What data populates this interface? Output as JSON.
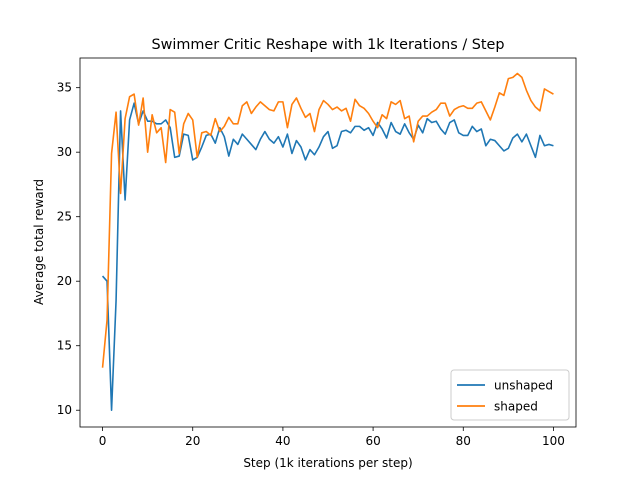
{
  "chart_data": {
    "type": "line",
    "title": "Swimmer Critic Reshape with 1k Iterations / Step",
    "xlabel": "Step (1k iterations per step)",
    "ylabel": "Average total reward",
    "xlim": [
      -5,
      105
    ],
    "ylim": [
      8.7,
      37.3
    ],
    "xticks": [
      0,
      20,
      40,
      60,
      80,
      100
    ],
    "yticks": [
      10,
      15,
      20,
      25,
      30,
      35
    ],
    "grid": false,
    "legend_position": "lower-right",
    "series": [
      {
        "name": "unshaped",
        "color": "#1f77b4",
        "values": [
          20.4,
          20.0,
          10.0,
          18.5,
          33.2,
          26.3,
          32.5,
          33.8,
          32.2,
          33.2,
          32.4,
          32.4,
          32.2,
          32.2,
          32.5,
          31.9,
          29.6,
          29.7,
          31.4,
          31.3,
          29.4,
          29.6,
          30.4,
          31.3,
          31.4,
          30.7,
          31.9,
          31.2,
          29.7,
          31.0,
          30.6,
          31.4,
          31.0,
          30.6,
          30.2,
          31.0,
          31.6,
          31.0,
          30.7,
          31.2,
          30.4,
          31.4,
          29.9,
          30.9,
          30.4,
          29.4,
          30.2,
          29.8,
          30.4,
          31.2,
          31.6,
          30.3,
          30.5,
          31.6,
          31.7,
          31.5,
          32.0,
          32.0,
          31.7,
          31.9,
          31.3,
          32.3,
          31.8,
          31.1,
          32.3,
          31.6,
          31.4,
          32.2,
          31.5,
          31.0,
          32.1,
          31.5,
          32.6,
          32.3,
          32.4,
          31.8,
          31.4,
          32.3,
          32.5,
          31.5,
          31.3,
          31.3,
          32.0,
          31.6,
          31.8,
          30.5,
          31.0,
          30.9,
          30.5,
          30.1,
          30.3,
          31.1,
          31.4,
          30.8,
          31.4,
          30.5,
          29.6,
          31.3,
          30.5,
          30.6,
          30.5
        ]
      },
      {
        "name": "shaped",
        "color": "#ff7f0e",
        "values": [
          13.3,
          17.0,
          29.9,
          33.1,
          26.8,
          32.6,
          34.3,
          34.5,
          32.1,
          34.2,
          30.0,
          32.9,
          31.5,
          31.9,
          29.2,
          33.3,
          33.1,
          29.9,
          32.2,
          33.0,
          32.5,
          29.6,
          31.5,
          31.6,
          31.3,
          32.6,
          31.6,
          32.0,
          32.7,
          32.2,
          32.2,
          33.6,
          33.9,
          33.0,
          33.5,
          33.9,
          33.6,
          33.3,
          33.2,
          33.9,
          33.9,
          31.9,
          33.7,
          34.2,
          33.4,
          32.7,
          33.0,
          31.6,
          33.3,
          34.0,
          33.7,
          33.3,
          33.5,
          33.2,
          33.4,
          32.4,
          34.1,
          33.6,
          33.4,
          33.0,
          32.4,
          31.9,
          32.9,
          32.6,
          33.9,
          33.7,
          34.0,
          32.6,
          32.8,
          30.8,
          32.4,
          32.8,
          32.8,
          33.1,
          33.3,
          33.8,
          33.8,
          32.8,
          33.3,
          33.5,
          33.6,
          33.4,
          33.4,
          33.8,
          33.9,
          33.2,
          32.5,
          33.5,
          34.6,
          34.4,
          35.7,
          35.8,
          36.1,
          35.8,
          34.8,
          34.0,
          33.5,
          33.2,
          34.9,
          34.7,
          34.5
        ]
      }
    ]
  }
}
